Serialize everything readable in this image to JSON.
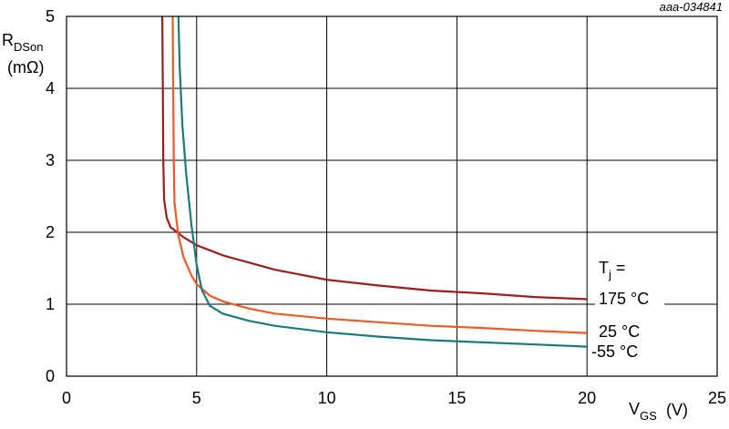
{
  "figure_id": "aaa-034841",
  "chart_data": {
    "type": "line",
    "title": "",
    "xlabel": {
      "main": "V",
      "sub": "GS",
      "unit": "(V)"
    },
    "ylabel": {
      "main": "R",
      "sub": "DSon",
      "unit": "(mΩ)"
    },
    "xlim": [
      0,
      25
    ],
    "ylim": [
      0,
      5
    ],
    "xticks": [
      0,
      5,
      10,
      15,
      20,
      25
    ],
    "yticks": [
      0,
      1,
      2,
      3,
      4,
      5
    ],
    "grid": true,
    "legend_header": {
      "main": "T",
      "sub": "j",
      "suffix": " ="
    },
    "series": [
      {
        "name": "175 °C",
        "color": "#A01D1D",
        "points": [
          [
            3.68,
            5.0
          ],
          [
            3.7,
            4.0
          ],
          [
            3.72,
            3.0
          ],
          [
            3.75,
            2.45
          ],
          [
            3.85,
            2.2
          ],
          [
            4.0,
            2.07
          ],
          [
            4.5,
            1.93
          ],
          [
            5.0,
            1.82
          ],
          [
            6.0,
            1.68
          ],
          [
            7.0,
            1.58
          ],
          [
            8.0,
            1.48
          ],
          [
            10.0,
            1.34
          ],
          [
            12.0,
            1.26
          ],
          [
            14.0,
            1.19
          ],
          [
            16.0,
            1.15
          ],
          [
            18.0,
            1.1
          ],
          [
            20.0,
            1.07
          ]
        ]
      },
      {
        "name": "25 °C",
        "color": "#EE5A24",
        "points": [
          [
            4.08,
            5.0
          ],
          [
            4.1,
            4.0
          ],
          [
            4.12,
            3.0
          ],
          [
            4.15,
            2.4
          ],
          [
            4.3,
            1.95
          ],
          [
            4.5,
            1.65
          ],
          [
            4.8,
            1.4
          ],
          [
            5.0,
            1.28
          ],
          [
            5.5,
            1.12
          ],
          [
            6.0,
            1.04
          ],
          [
            7.0,
            0.94
          ],
          [
            8.0,
            0.87
          ],
          [
            10.0,
            0.8
          ],
          [
            12.0,
            0.75
          ],
          [
            14.0,
            0.7
          ],
          [
            16.0,
            0.67
          ],
          [
            18.0,
            0.63
          ],
          [
            20.0,
            0.6
          ]
        ]
      },
      {
        "name": "-55 °C",
        "color": "#177C7A",
        "points": [
          [
            4.3,
            5.0
          ],
          [
            4.35,
            4.3
          ],
          [
            4.45,
            3.5
          ],
          [
            4.6,
            2.8
          ],
          [
            4.8,
            2.1
          ],
          [
            5.0,
            1.55
          ],
          [
            5.2,
            1.2
          ],
          [
            5.5,
            0.98
          ],
          [
            6.0,
            0.87
          ],
          [
            7.0,
            0.77
          ],
          [
            8.0,
            0.7
          ],
          [
            10.0,
            0.61
          ],
          [
            12.0,
            0.55
          ],
          [
            14.0,
            0.5
          ],
          [
            16.0,
            0.47
          ],
          [
            18.0,
            0.44
          ],
          [
            20.0,
            0.41
          ]
        ]
      }
    ]
  }
}
